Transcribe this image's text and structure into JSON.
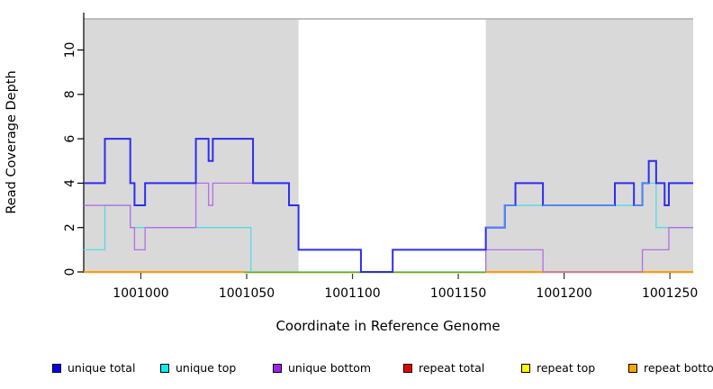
{
  "chart_data": {
    "type": "line",
    "subtype": "step-coverage",
    "title": "",
    "xlabel": "Coordinate in Reference Genome",
    "ylabel": "Read Coverage Depth",
    "xlim": [
      1000973,
      1001261
    ],
    "ylim": [
      0,
      11.4
    ],
    "x_ticks": [
      1001000,
      1001050,
      1001100,
      1001150,
      1001200,
      1001250
    ],
    "y_ticks": [
      0,
      2,
      4,
      6,
      8,
      10
    ],
    "grid": false,
    "shade_color": "#d9d9d9",
    "shaded_regions": [
      [
        1000973,
        1001074.5
      ],
      [
        1001163,
        1001261
      ]
    ],
    "series": [
      {
        "name": "repeat-top-line",
        "color": "#ecec7c",
        "width": 1,
        "dy": 1.5,
        "points": [
          [
            1001049,
            0
          ],
          [
            1001163,
            0
          ]
        ]
      },
      {
        "name": "repeat-overlap-line",
        "color": "#72c272",
        "width": 1.6,
        "dy": 0,
        "points": [
          [
            1001049,
            0
          ],
          [
            1001163,
            0
          ]
        ]
      },
      {
        "name": "repeat-bottom-line-left",
        "color": "#ff9e06",
        "width": 2,
        "dy": 0,
        "points": [
          [
            1000973,
            0
          ],
          [
            1001049,
            0
          ]
        ]
      },
      {
        "name": "repeat-bottom-line-right",
        "color": "#ff9e06",
        "width": 2,
        "dy": 0,
        "points": [
          [
            1001163,
            0
          ],
          [
            1001261,
            0
          ]
        ]
      },
      {
        "name": "unique-top-line-left",
        "color": "#52dbe6",
        "width": 1.3,
        "dy": 0,
        "points": [
          [
            1000973,
            1
          ],
          [
            1000983,
            1
          ],
          [
            1000983,
            3
          ],
          [
            1000995,
            3
          ],
          [
            1000995,
            2
          ],
          [
            1001052,
            2
          ],
          [
            1001052,
            0
          ]
        ]
      },
      {
        "name": "unique-top-line-right",
        "color": "#52dbe6",
        "width": 1.3,
        "dy": 0,
        "points": [
          [
            1001163,
            0
          ],
          [
            1001163,
            2
          ],
          [
            1001172,
            2
          ],
          [
            1001172,
            3
          ],
          [
            1001237,
            3
          ],
          [
            1001237,
            4
          ],
          [
            1001243.5,
            4
          ],
          [
            1001243.5,
            2
          ],
          [
            1001261,
            2
          ]
        ]
      },
      {
        "name": "unique-bottom-line-left",
        "color": "#b46ee4",
        "width": 1.3,
        "dy": 0,
        "points": [
          [
            1000973,
            3
          ],
          [
            1000995,
            3
          ],
          [
            1000995,
            2
          ],
          [
            1000997,
            2
          ],
          [
            1000997,
            1
          ],
          [
            1001002,
            1
          ],
          [
            1001002,
            2
          ],
          [
            1001026,
            2
          ],
          [
            1001026,
            4
          ],
          [
            1001032,
            4
          ],
          [
            1001032,
            3
          ],
          [
            1001034,
            3
          ],
          [
            1001034,
            4
          ],
          [
            1001053,
            4
          ]
        ]
      },
      {
        "name": "unique-bottom-line-right",
        "color": "#b46ee4",
        "width": 1.3,
        "dy": 0,
        "points": [
          [
            1001163,
            0
          ],
          [
            1001163,
            1
          ],
          [
            1001190,
            1
          ],
          [
            1001190,
            0
          ],
          [
            1001237,
            0
          ],
          [
            1001237,
            1
          ],
          [
            1001249.5,
            1
          ],
          [
            1001249.5,
            2
          ],
          [
            1001261,
            2
          ]
        ]
      },
      {
        "name": "unique-total-line",
        "color": "#2d2df0",
        "width": 2,
        "dy": 0,
        "points": [
          [
            1000973,
            4
          ],
          [
            1000983,
            4
          ],
          [
            1000983,
            6
          ],
          [
            1000995,
            6
          ],
          [
            1000995,
            4
          ],
          [
            1000997,
            4
          ],
          [
            1000997,
            3
          ],
          [
            1001002,
            3
          ],
          [
            1001002,
            4
          ],
          [
            1001026,
            4
          ],
          [
            1001026,
            6
          ],
          [
            1001032,
            6
          ],
          [
            1001032,
            5
          ],
          [
            1001034,
            5
          ],
          [
            1001034,
            6
          ],
          [
            1001053,
            6
          ],
          [
            1001053,
            4
          ],
          [
            1001070,
            4
          ],
          [
            1001070,
            3
          ],
          [
            1001074.5,
            3
          ],
          [
            1001074.5,
            1
          ],
          [
            1001104,
            1
          ],
          [
            1001104,
            0
          ],
          [
            1001119,
            0
          ],
          [
            1001119,
            1
          ],
          [
            1001163,
            1
          ],
          [
            1001163,
            2
          ],
          [
            1001172,
            2
          ],
          [
            1001172,
            3
          ],
          [
            1001177,
            3
          ],
          [
            1001177,
            4
          ],
          [
            1001190,
            4
          ],
          [
            1001190,
            3
          ],
          [
            1001224,
            3
          ],
          [
            1001224,
            4
          ],
          [
            1001233,
            4
          ],
          [
            1001233,
            3
          ],
          [
            1001237,
            3
          ],
          [
            1001237,
            4
          ],
          [
            1001240,
            4
          ],
          [
            1001240,
            5
          ],
          [
            1001243.5,
            5
          ],
          [
            1001243.5,
            4
          ],
          [
            1001247.5,
            4
          ],
          [
            1001247.5,
            3
          ],
          [
            1001249.5,
            3
          ],
          [
            1001249.5,
            4
          ],
          [
            1001261,
            4
          ]
        ]
      },
      {
        "name": "unique-total-over-cyan-1",
        "color": "#4f86f5",
        "width": 2,
        "dy": 0,
        "points": [
          [
            1001163,
            2
          ],
          [
            1001172,
            2
          ],
          [
            1001172,
            3
          ],
          [
            1001177,
            3
          ]
        ]
      },
      {
        "name": "unique-total-over-cyan-2",
        "color": "#4f86f5",
        "width": 2,
        "dy": 0,
        "points": [
          [
            1001190,
            3
          ],
          [
            1001224,
            3
          ]
        ]
      },
      {
        "name": "unique-total-over-cyan-3",
        "color": "#4f86f5",
        "width": 2,
        "dy": 0,
        "points": [
          [
            1001233,
            3
          ],
          [
            1001237,
            3
          ],
          [
            1001237,
            4
          ],
          [
            1001240,
            4
          ]
        ]
      }
    ],
    "legend": [
      {
        "label": "unique total",
        "color": "#0000ee"
      },
      {
        "label": "unique top",
        "color": "#00eeee"
      },
      {
        "label": "unique bottom",
        "color": "#a020f0"
      },
      {
        "label": "repeat total",
        "color": "#e60000"
      },
      {
        "label": "repeat top",
        "color": "#ffff00"
      },
      {
        "label": "repeat bottom",
        "color": "#ffa500"
      }
    ],
    "legend_position": "bottom"
  }
}
